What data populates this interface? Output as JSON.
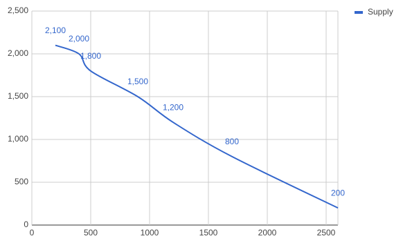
{
  "chart_data": {
    "type": "line",
    "x": [
      200,
      400,
      500,
      900,
      1200,
      1700,
      2600
    ],
    "series": [
      {
        "name": "Supply",
        "color": "#3366cc",
        "values": [
          2100,
          2000,
          1800,
          1500,
          1200,
          800,
          200
        ],
        "value_labels": [
          "2,100",
          "2,000",
          "1,800",
          "1,500",
          "1,200",
          "800",
          "200"
        ]
      }
    ],
    "xlim": [
      0,
      2600
    ],
    "xticks": [
      0,
      500,
      1000,
      1500,
      2000,
      2500
    ],
    "ylim": [
      0,
      2500
    ],
    "yticks": [
      0,
      500,
      {
        "value": 1000,
        "label": "1,000"
      },
      {
        "value": 1500,
        "label": "1,500"
      },
      {
        "value": 2000,
        "label": "2,000"
      },
      {
        "value": 2500,
        "label": "2,500"
      }
    ],
    "grid": true,
    "legend": "top-right"
  }
}
